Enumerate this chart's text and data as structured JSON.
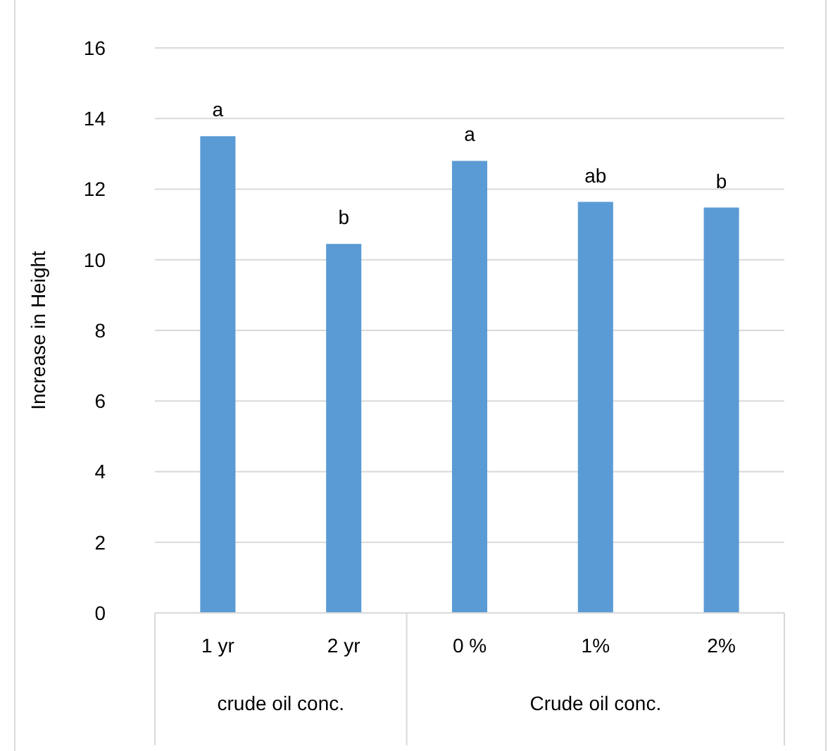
{
  "chart_data": {
    "type": "bar",
    "ylabel": "Increase in Height",
    "categories": [
      "1 yr",
      "2 yr",
      "0 %",
      "1%",
      "2%"
    ],
    "values": [
      13.5,
      10.45,
      12.8,
      11.64,
      11.48
    ],
    "color": "#5b9bd5",
    "ylim": [
      0,
      16
    ],
    "yticks": [
      0,
      2,
      4,
      6,
      8,
      10,
      12,
      14,
      16
    ],
    "grid": "y",
    "annotations": [
      "crude oil conc.",
      "Crude oil conc.",
      {
        "text": "a",
        "x": "1 yr",
        "y": 13.5
      },
      {
        "text": "b",
        "x": "2 yr",
        "y": 10.45
      },
      {
        "text": "a",
        "x": "0 %",
        "y": 12.8
      },
      {
        "text": "ab",
        "x": "1%",
        "y": 11.64
      },
      {
        "text": "b",
        "x": "2%",
        "y": 11.48
      }
    ]
  }
}
